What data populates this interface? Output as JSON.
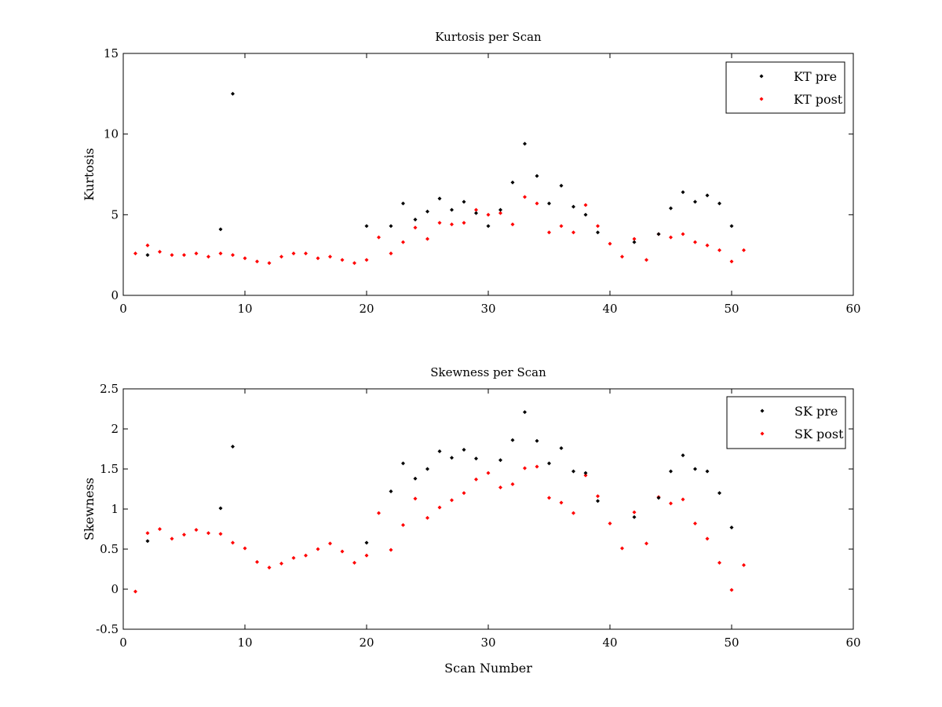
{
  "chart_data": [
    {
      "type": "scatter",
      "title": "Kurtosis per Scan",
      "xlabel": "",
      "ylabel": "Kurtosis",
      "xlim": [
        0,
        60
      ],
      "ylim": [
        0,
        15
      ],
      "xticks": [
        0,
        10,
        20,
        30,
        40,
        50,
        60
      ],
      "yticks": [
        0,
        5,
        10,
        15
      ],
      "xtick_labels": [
        "0",
        "10",
        "20",
        "30",
        "40",
        "50",
        "60"
      ],
      "ytick_labels": [
        "0",
        "5",
        "10",
        "15"
      ],
      "grid": false,
      "legend_position": "top-right",
      "series": [
        {
          "name": "KT pre",
          "color": "#000000",
          "x": [
            2,
            8,
            9,
            20,
            22,
            23,
            24,
            25,
            26,
            27,
            28,
            29,
            30,
            31,
            32,
            33,
            34,
            35,
            36,
            37,
            38,
            39,
            42,
            44,
            45,
            46,
            47,
            48,
            49,
            50
          ],
          "y": [
            2.5,
            4.1,
            12.5,
            4.3,
            4.3,
            5.7,
            4.7,
            5.2,
            6.0,
            5.3,
            5.8,
            5.1,
            4.3,
            5.3,
            7.0,
            9.4,
            7.4,
            5.7,
            6.8,
            5.5,
            5.0,
            3.9,
            3.3,
            3.8,
            5.4,
            6.4,
            5.8,
            6.2,
            5.7,
            4.3
          ]
        },
        {
          "name": "KT post",
          "color": "#ff0000",
          "x": [
            1,
            2,
            3,
            4,
            5,
            6,
            7,
            8,
            9,
            10,
            11,
            12,
            13,
            14,
            15,
            16,
            17,
            18,
            19,
            20,
            21,
            22,
            23,
            24,
            25,
            26,
            27,
            28,
            29,
            30,
            31,
            32,
            33,
            34,
            35,
            36,
            37,
            38,
            39,
            40,
            41,
            42,
            43,
            44,
            45,
            46,
            47,
            48,
            49,
            50,
            51
          ],
          "y": [
            2.6,
            3.1,
            2.7,
            2.5,
            2.5,
            2.6,
            2.4,
            2.6,
            2.5,
            2.3,
            2.1,
            2.0,
            2.4,
            2.6,
            2.6,
            2.3,
            2.4,
            2.2,
            2.0,
            2.2,
            3.6,
            2.6,
            3.3,
            4.2,
            3.5,
            4.5,
            4.4,
            4.5,
            5.3,
            5.0,
            5.1,
            4.4,
            6.1,
            5.7,
            3.9,
            4.3,
            3.9,
            5.6,
            4.3,
            3.2,
            2.4,
            3.5,
            2.2,
            3.8,
            3.6,
            3.8,
            3.3,
            3.1,
            2.8,
            2.1,
            2.8
          ]
        }
      ]
    },
    {
      "type": "scatter",
      "title": "Skewness per Scan",
      "xlabel": "Scan Number",
      "ylabel": "Skewness",
      "xlim": [
        0,
        60
      ],
      "ylim": [
        -0.5,
        2.5
      ],
      "xticks": [
        0,
        10,
        20,
        30,
        40,
        50,
        60
      ],
      "yticks": [
        -0.5,
        0,
        0.5,
        1,
        1.5,
        2,
        2.5
      ],
      "xtick_labels": [
        "0",
        "10",
        "20",
        "30",
        "40",
        "50",
        "60"
      ],
      "ytick_labels": [
        "-0.5",
        "0",
        "0.5",
        "1",
        "1.5",
        "2",
        "2.5"
      ],
      "grid": false,
      "legend_position": "top-right",
      "series": [
        {
          "name": "SK pre",
          "color": "#000000",
          "x": [
            2,
            8,
            9,
            20,
            22,
            23,
            24,
            25,
            26,
            27,
            28,
            29,
            31,
            32,
            33,
            34,
            35,
            36,
            37,
            38,
            39,
            42,
            44,
            45,
            46,
            47,
            48,
            49,
            50
          ],
          "y": [
            0.6,
            1.01,
            1.78,
            0.58,
            1.22,
            1.57,
            1.38,
            1.5,
            1.72,
            1.64,
            1.74,
            1.63,
            1.61,
            1.86,
            2.21,
            1.85,
            1.57,
            1.76,
            1.47,
            1.45,
            1.1,
            0.9,
            1.14,
            1.47,
            1.67,
            1.5,
            1.47,
            1.2,
            0.77
          ]
        },
        {
          "name": "SK post",
          "color": "#ff0000",
          "x": [
            1,
            2,
            3,
            4,
            5,
            6,
            7,
            8,
            9,
            10,
            11,
            12,
            13,
            14,
            15,
            16,
            17,
            18,
            19,
            20,
            21,
            22,
            23,
            24,
            25,
            26,
            27,
            28,
            29,
            30,
            31,
            32,
            33,
            34,
            35,
            36,
            37,
            38,
            39,
            40,
            41,
            42,
            43,
            44,
            45,
            46,
            47,
            48,
            49,
            50,
            51
          ],
          "y": [
            -0.03,
            0.7,
            0.75,
            0.63,
            0.68,
            0.74,
            0.7,
            0.69,
            0.58,
            0.51,
            0.34,
            0.27,
            0.32,
            0.39,
            0.42,
            0.5,
            0.57,
            0.47,
            0.33,
            0.42,
            0.95,
            0.49,
            0.8,
            1.13,
            0.89,
            1.02,
            1.11,
            1.2,
            1.37,
            1.45,
            1.27,
            1.31,
            1.51,
            1.53,
            1.14,
            1.08,
            0.95,
            1.42,
            1.16,
            0.82,
            0.51,
            0.96,
            0.57,
            1.15,
            1.07,
            1.12,
            0.82,
            0.63,
            0.33,
            -0.01,
            0.3
          ]
        }
      ]
    }
  ]
}
